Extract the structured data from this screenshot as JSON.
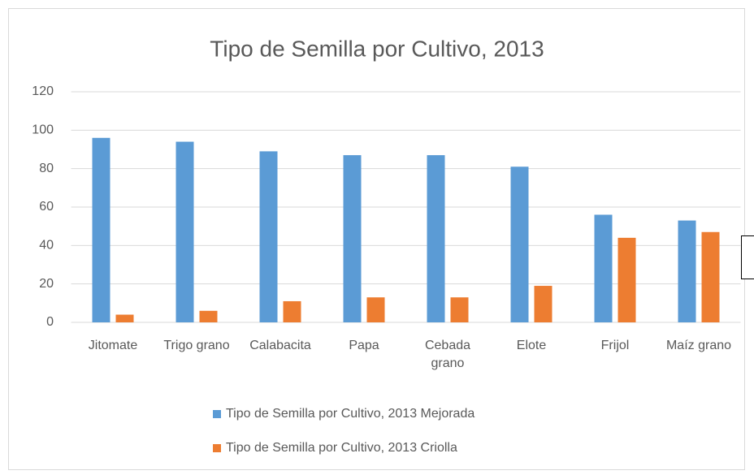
{
  "chart_data": {
    "type": "bar",
    "title": "Tipo de Semilla por Cultivo, 2013",
    "categories": [
      "Jitomate",
      "Trigo grano",
      "Calabacita",
      "Papa",
      "Cebada grano",
      "Elote",
      "Frijol",
      "Maíz grano"
    ],
    "series": [
      {
        "name": "Tipo de Semilla por Cultivo, 2013 Mejorada",
        "color": "#5b9bd5",
        "values": [
          96,
          94,
          89,
          87,
          87,
          81,
          56,
          53
        ]
      },
      {
        "name": "Tipo de Semilla por Cultivo, 2013 Criolla",
        "color": "#ed7d31",
        "values": [
          4,
          6,
          11,
          13,
          13,
          19,
          44,
          47
        ]
      }
    ],
    "ylim": [
      0,
      120
    ],
    "yticks": [
      0,
      20,
      40,
      60,
      80,
      100,
      120
    ],
    "grid": true,
    "legend": "bottom"
  }
}
